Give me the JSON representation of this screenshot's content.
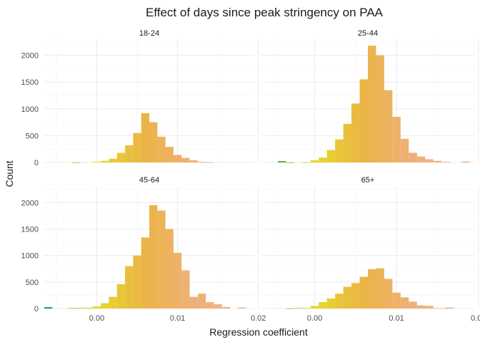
{
  "chart_data": {
    "type": "histogram",
    "title": "Effect of days since peak stringency on PAA",
    "xlabel": "Regression coefficient",
    "ylabel": "Count",
    "facet_layout": "2x2",
    "xlim": [
      -0.0065,
      0.0195
    ],
    "ylim": [
      0,
      2300
    ],
    "x_ticks": [
      0.0,
      0.01,
      0.02
    ],
    "x_tick_labels": [
      "0.00",
      "0.01",
      "0.02"
    ],
    "y_ticks": [
      0,
      500,
      1000,
      1500,
      2000
    ],
    "y_tick_labels": [
      "0",
      "500",
      "1000",
      "1500",
      "2000"
    ],
    "grid": true,
    "fill_gradient": [
      "#1a9641",
      "#e6d82a",
      "#f0c060",
      "#eeb07a"
    ],
    "fill_note": "bars colored by x value (green → yellow → orange → tan)",
    "panels": [
      {
        "label": "18-24",
        "bins": [
          {
            "x": -0.005,
            "count": 0
          },
          {
            "x": -0.0025,
            "count": 3
          },
          {
            "x": 0.0,
            "count": 15
          },
          {
            "x": 0.001,
            "count": 30
          },
          {
            "x": 0.002,
            "count": 70
          },
          {
            "x": 0.003,
            "count": 180
          },
          {
            "x": 0.004,
            "count": 320
          },
          {
            "x": 0.005,
            "count": 550
          },
          {
            "x": 0.006,
            "count": 920
          },
          {
            "x": 0.007,
            "count": 750
          },
          {
            "x": 0.008,
            "count": 480
          },
          {
            "x": 0.009,
            "count": 290
          },
          {
            "x": 0.01,
            "count": 140
          },
          {
            "x": 0.011,
            "count": 85
          },
          {
            "x": 0.012,
            "count": 40
          },
          {
            "x": 0.013,
            "count": 12
          },
          {
            "x": 0.014,
            "count": 4
          }
        ]
      },
      {
        "label": "25-44",
        "bins": [
          {
            "x": -0.004,
            "count": 25
          },
          {
            "x": -0.003,
            "count": 3
          },
          {
            "x": -0.001,
            "count": 3
          },
          {
            "x": 0.0,
            "count": 40
          },
          {
            "x": 0.001,
            "count": 90
          },
          {
            "x": 0.002,
            "count": 230
          },
          {
            "x": 0.003,
            "count": 430
          },
          {
            "x": 0.004,
            "count": 720
          },
          {
            "x": 0.005,
            "count": 1100
          },
          {
            "x": 0.006,
            "count": 1550
          },
          {
            "x": 0.007,
            "count": 2180
          },
          {
            "x": 0.008,
            "count": 2000
          },
          {
            "x": 0.009,
            "count": 1350
          },
          {
            "x": 0.01,
            "count": 850
          },
          {
            "x": 0.011,
            "count": 440
          },
          {
            "x": 0.012,
            "count": 180
          },
          {
            "x": 0.013,
            "count": 110
          },
          {
            "x": 0.014,
            "count": 60
          },
          {
            "x": 0.015,
            "count": 30
          },
          {
            "x": 0.016,
            "count": 12
          },
          {
            "x": 0.0185,
            "count": 20
          }
        ]
      },
      {
        "label": "45-64",
        "bins": [
          {
            "x": -0.006,
            "count": 25
          },
          {
            "x": -0.003,
            "count": 10
          },
          {
            "x": -0.002,
            "count": 10
          },
          {
            "x": -0.001,
            "count": 15
          },
          {
            "x": 0.0,
            "count": 40
          },
          {
            "x": 0.001,
            "count": 100
          },
          {
            "x": 0.002,
            "count": 220
          },
          {
            "x": 0.003,
            "count": 460
          },
          {
            "x": 0.004,
            "count": 800
          },
          {
            "x": 0.005,
            "count": 1000
          },
          {
            "x": 0.006,
            "count": 1340
          },
          {
            "x": 0.007,
            "count": 1950
          },
          {
            "x": 0.008,
            "count": 1850
          },
          {
            "x": 0.009,
            "count": 1500
          },
          {
            "x": 0.01,
            "count": 1050
          },
          {
            "x": 0.011,
            "count": 720
          },
          {
            "x": 0.012,
            "count": 220
          },
          {
            "x": 0.013,
            "count": 280
          },
          {
            "x": 0.014,
            "count": 120
          },
          {
            "x": 0.015,
            "count": 80
          },
          {
            "x": 0.016,
            "count": 30
          },
          {
            "x": 0.018,
            "count": 20
          }
        ]
      },
      {
        "label": "65+",
        "bins": [
          {
            "x": -0.003,
            "count": 3
          },
          {
            "x": -0.002,
            "count": 10
          },
          {
            "x": -0.001,
            "count": 10
          },
          {
            "x": 0.0,
            "count": 50
          },
          {
            "x": 0.001,
            "count": 120
          },
          {
            "x": 0.002,
            "count": 190
          },
          {
            "x": 0.003,
            "count": 280
          },
          {
            "x": 0.004,
            "count": 410
          },
          {
            "x": 0.005,
            "count": 480
          },
          {
            "x": 0.006,
            "count": 600
          },
          {
            "x": 0.007,
            "count": 740
          },
          {
            "x": 0.008,
            "count": 760
          },
          {
            "x": 0.009,
            "count": 560
          },
          {
            "x": 0.01,
            "count": 300
          },
          {
            "x": 0.011,
            "count": 210
          },
          {
            "x": 0.012,
            "count": 130
          },
          {
            "x": 0.013,
            "count": 60
          },
          {
            "x": 0.014,
            "count": 50
          },
          {
            "x": 0.015,
            "count": 10
          },
          {
            "x": 0.016,
            "count": 5
          },
          {
            "x": 0.0165,
            "count": 20
          }
        ]
      }
    ]
  }
}
